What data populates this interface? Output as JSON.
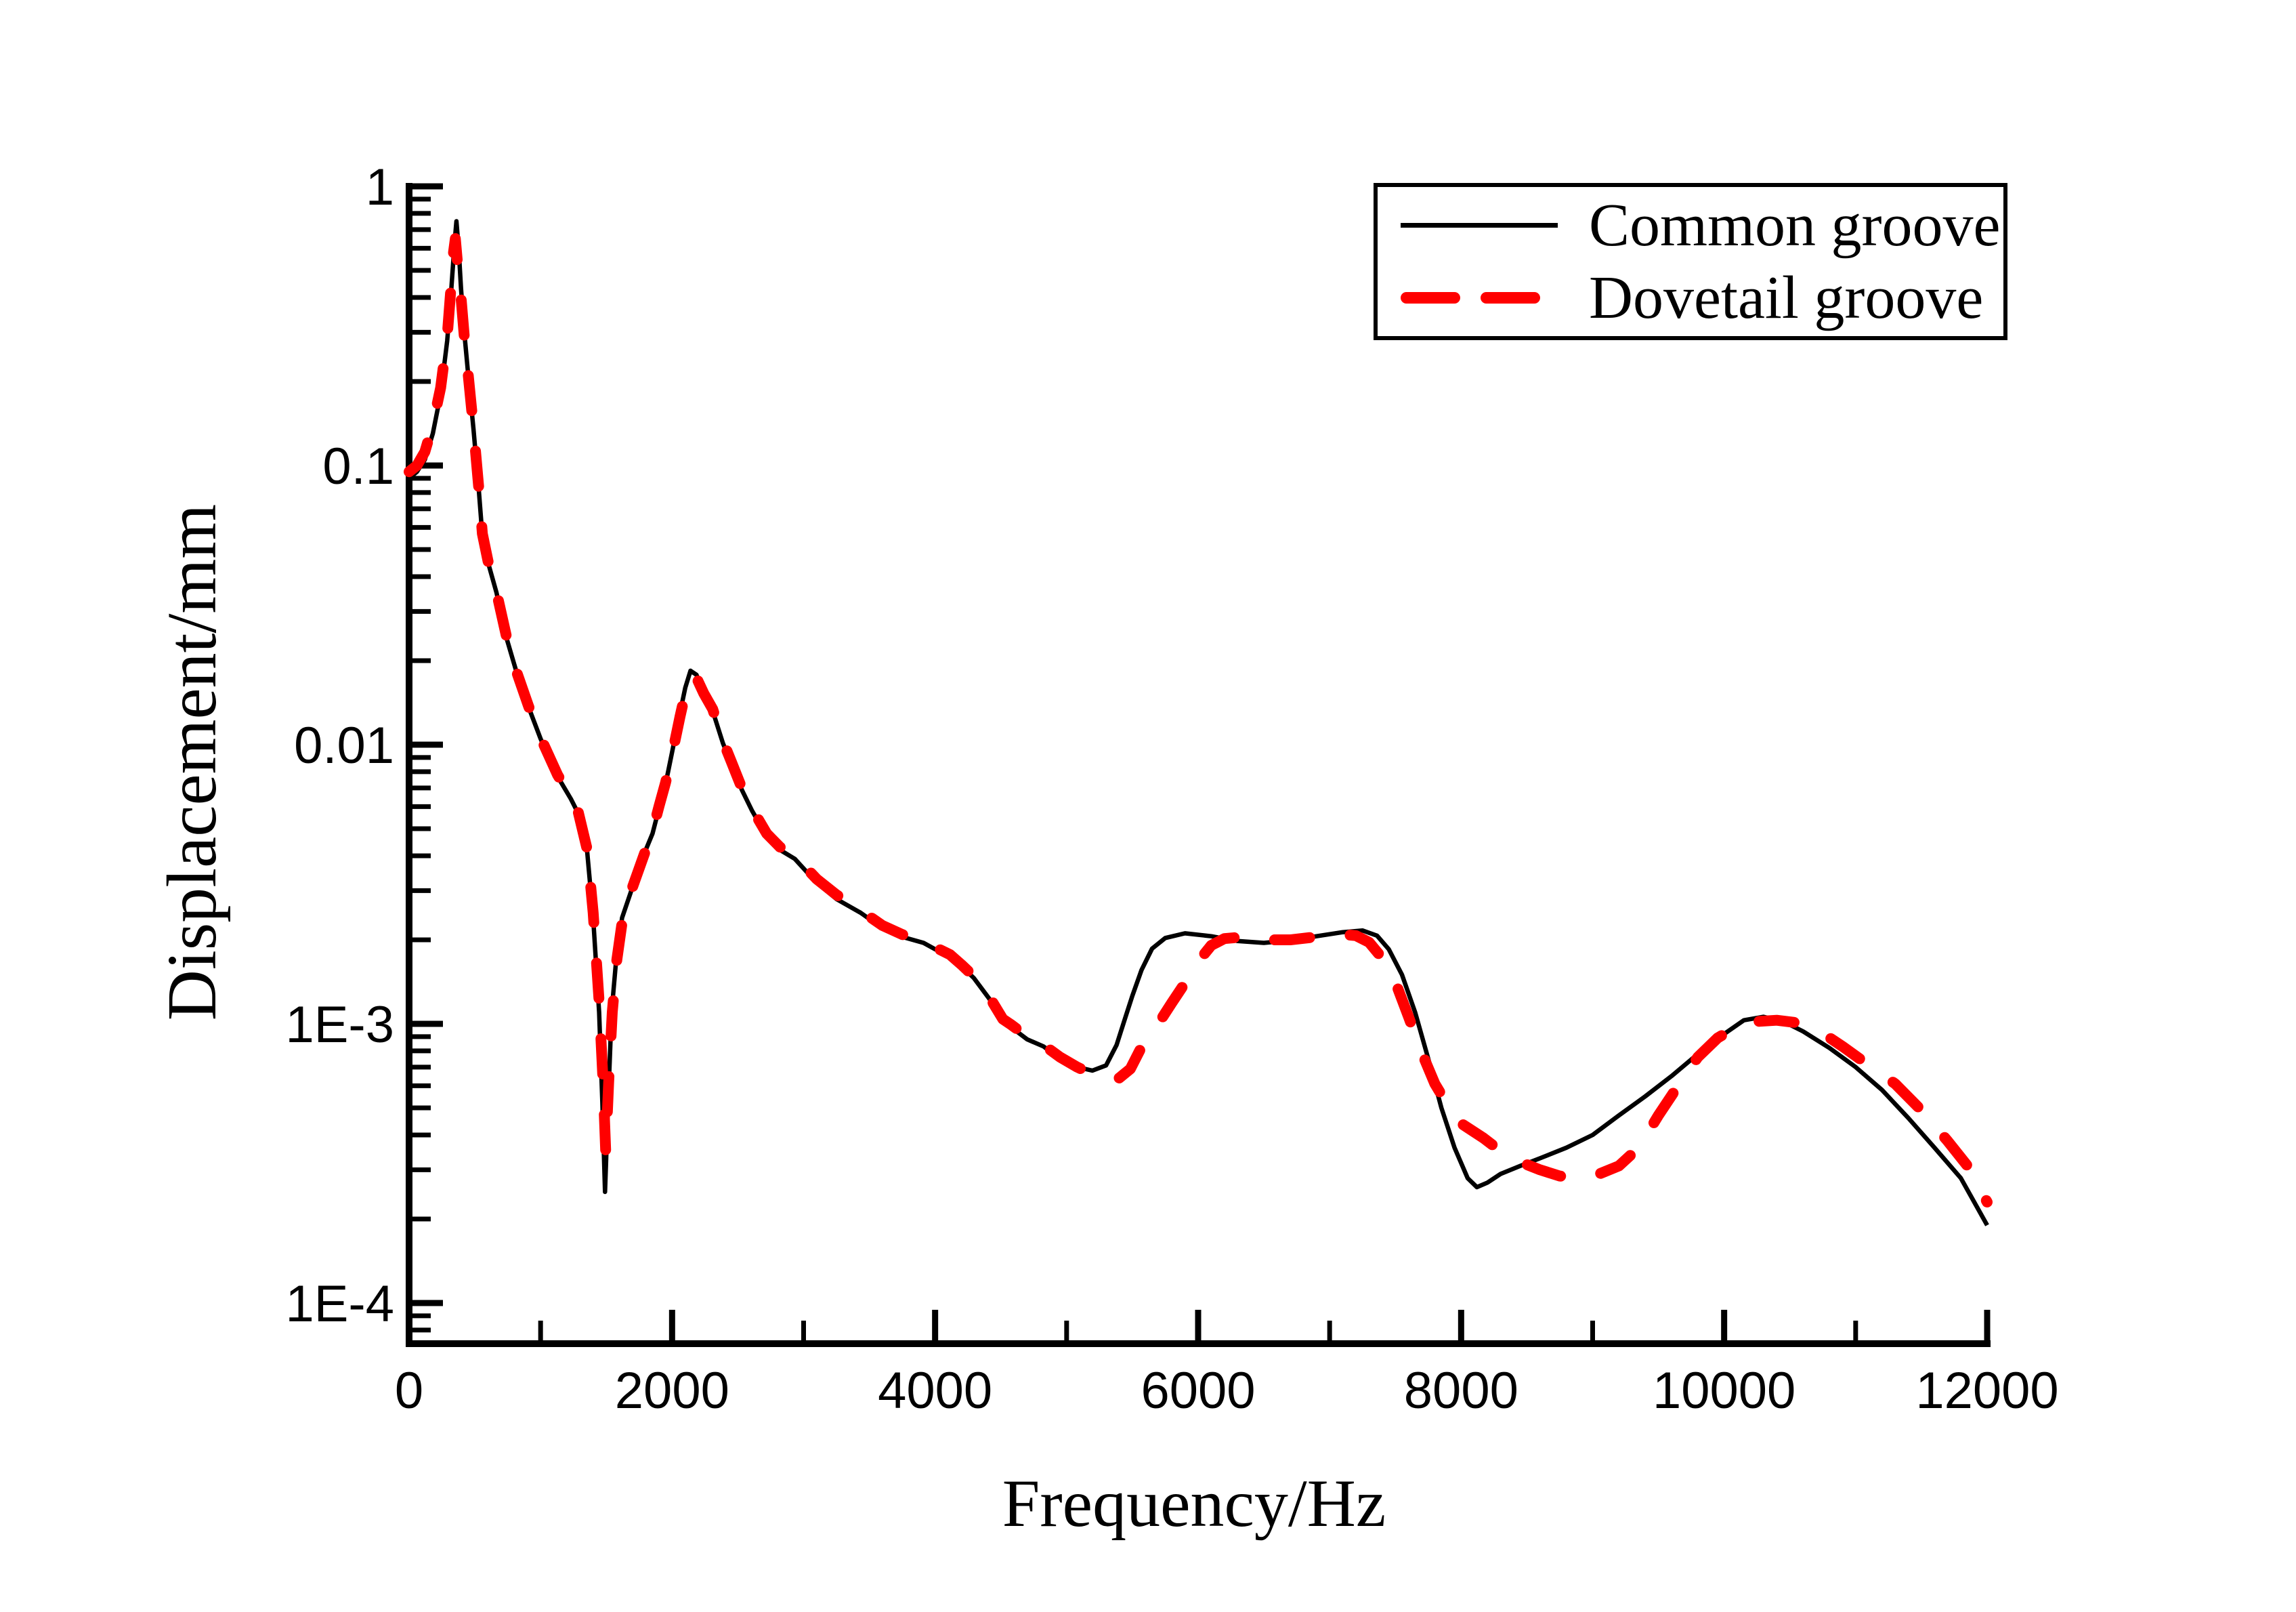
{
  "chart_data": {
    "type": "line",
    "title": "",
    "xlabel": "Frequency/Hz",
    "ylabel": "Displacement/mm",
    "x_range": [
      0,
      12000
    ],
    "y_scale": "log",
    "y_range": [
      0.0001,
      1
    ],
    "grid": false,
    "legend_position": "top-right",
    "background_color": "#FFFFFF",
    "axis_color": "#000000",
    "x_tick_values": [
      0,
      2000,
      4000,
      6000,
      8000,
      10000,
      12000
    ],
    "x_tick_labels": [
      "0",
      "2000",
      "4000",
      "6000",
      "8000",
      "10000",
      "12000"
    ],
    "x_minor_tick_values": [
      1000,
      3000,
      5000,
      7000,
      9000,
      11000
    ],
    "y_tick_values": [
      1,
      0.1,
      0.01,
      0.001,
      0.0001
    ],
    "y_tick_labels": [
      "1",
      "0.1",
      "0.01",
      "1E-3",
      "1E-4"
    ],
    "series": [
      {
        "name": "Common groove",
        "color": "#000000",
        "style": "solid",
        "points": [
          [
            0,
            0.09
          ],
          [
            60,
            0.095
          ],
          [
            120,
            0.105
          ],
          [
            180,
            0.13
          ],
          [
            240,
            0.18
          ],
          [
            290,
            0.28
          ],
          [
            320,
            0.42
          ],
          [
            345,
            0.62
          ],
          [
            360,
            0.75
          ],
          [
            378,
            0.59
          ],
          [
            395,
            0.43
          ],
          [
            420,
            0.3
          ],
          [
            450,
            0.21
          ],
          [
            490,
            0.135
          ],
          [
            530,
            0.082
          ],
          [
            557,
            0.056
          ],
          [
            600,
            0.045
          ],
          [
            665,
            0.035
          ],
          [
            742,
            0.024
          ],
          [
            820,
            0.018
          ],
          [
            907,
            0.0137
          ],
          [
            1000,
            0.0105
          ],
          [
            1129,
            0.0077
          ],
          [
            1230,
            0.0064
          ],
          [
            1284,
            0.0057
          ],
          [
            1355,
            0.0041
          ],
          [
            1400,
            0.0024
          ],
          [
            1445,
            0.0011
          ],
          [
            1470,
            0.00052
          ],
          [
            1490,
            0.00025
          ],
          [
            1512,
            0.0005
          ],
          [
            1540,
            0.0011
          ],
          [
            1575,
            0.0017
          ],
          [
            1620,
            0.0024
          ],
          [
            1700,
            0.0031
          ],
          [
            1800,
            0.0042
          ],
          [
            1851,
            0.0048
          ],
          [
            1900,
            0.0059
          ],
          [
            1950,
            0.0072
          ],
          [
            2000,
            0.0094
          ],
          [
            2060,
            0.013
          ],
          [
            2100,
            0.016
          ],
          [
            2140,
            0.0184
          ],
          [
            2185,
            0.0178
          ],
          [
            2230,
            0.0158
          ],
          [
            2309,
            0.0132
          ],
          [
            2387,
            0.0101
          ],
          [
            2450,
            0.0086
          ],
          [
            2530,
            0.0069
          ],
          [
            2608,
            0.0058
          ],
          [
            2720,
            0.0047
          ],
          [
            2820,
            0.0042
          ],
          [
            2933,
            0.0039
          ],
          [
            3100,
            0.0032
          ],
          [
            3250,
            0.0028
          ],
          [
            3433,
            0.0025
          ],
          [
            3600,
            0.0022
          ],
          [
            3750,
            0.00205
          ],
          [
            3912,
            0.00195
          ],
          [
            4000,
            0.00185
          ],
          [
            4113,
            0.00174
          ],
          [
            4200,
            0.00161
          ],
          [
            4294,
            0.00146
          ],
          [
            4412,
            0.00123
          ],
          [
            4515,
            0.00102
          ],
          [
            4582,
            0.00097
          ],
          [
            4700,
            0.00088
          ],
          [
            4824,
            0.00083
          ],
          [
            4950,
            0.00075
          ],
          [
            5080,
            0.0007
          ],
          [
            5196,
            0.00068
          ],
          [
            5300,
            0.00071
          ],
          [
            5380,
            0.00084
          ],
          [
            5443,
            0.00104
          ],
          [
            5500,
            0.00126
          ],
          [
            5570,
            0.00156
          ],
          [
            5650,
            0.00186
          ],
          [
            5750,
            0.00203
          ],
          [
            5900,
            0.00211
          ],
          [
            6100,
            0.00206
          ],
          [
            6300,
            0.00198
          ],
          [
            6500,
            0.00195
          ],
          [
            6700,
            0.00199
          ],
          [
            6900,
            0.00206
          ],
          [
            7100,
            0.00213
          ],
          [
            7250,
            0.00216
          ],
          [
            7360,
            0.00207
          ],
          [
            7450,
            0.00185
          ],
          [
            7550,
            0.0015
          ],
          [
            7650,
            0.0011
          ],
          [
            7750,
            0.00075
          ],
          [
            7850,
            0.0005
          ],
          [
            7950,
            0.00036
          ],
          [
            8050,
            0.00028
          ],
          [
            8120,
            0.00026
          ],
          [
            8200,
            0.00027
          ],
          [
            8300,
            0.00029
          ],
          [
            8450,
            0.00031
          ],
          [
            8600,
            0.00033
          ],
          [
            8800,
            0.00036
          ],
          [
            9000,
            0.0004
          ],
          [
            9200,
            0.00047
          ],
          [
            9400,
            0.00055
          ],
          [
            9600,
            0.00065
          ],
          [
            9800,
            0.00078
          ],
          [
            10000,
            0.00092
          ],
          [
            10150,
            0.00103
          ],
          [
            10300,
            0.00106
          ],
          [
            10450,
            0.00102
          ],
          [
            10600,
            0.00094
          ],
          [
            10800,
            0.00082
          ],
          [
            11000,
            0.0007
          ],
          [
            11200,
            0.00058
          ],
          [
            11400,
            0.00046
          ],
          [
            11600,
            0.00036
          ],
          [
            11800,
            0.00028
          ],
          [
            12000,
            0.00019
          ]
        ]
      },
      {
        "name": "Dovetail groove",
        "color": "#FF0000",
        "style": "dashed",
        "points": [
          [
            0,
            0.095
          ],
          [
            60,
            0.1
          ],
          [
            120,
            0.112
          ],
          [
            180,
            0.14
          ],
          [
            240,
            0.19
          ],
          [
            290,
            0.29
          ],
          [
            318,
            0.43
          ],
          [
            338,
            0.58
          ],
          [
            352,
            0.65
          ],
          [
            370,
            0.52
          ],
          [
            395,
            0.4
          ],
          [
            420,
            0.29
          ],
          [
            450,
            0.21
          ],
          [
            490,
            0.136
          ],
          [
            530,
            0.083
          ],
          [
            557,
            0.057
          ],
          [
            600,
            0.0455
          ],
          [
            665,
            0.0352
          ],
          [
            742,
            0.0242
          ],
          [
            820,
            0.0181
          ],
          [
            907,
            0.0138
          ],
          [
            1000,
            0.0106
          ],
          [
            1129,
            0.0078
          ],
          [
            1230,
            0.0065
          ],
          [
            1284,
            0.0058
          ],
          [
            1355,
            0.0042
          ],
          [
            1400,
            0.0025
          ],
          [
            1445,
            0.0012
          ],
          [
            1475,
            0.00062
          ],
          [
            1495,
            0.00035
          ],
          [
            1518,
            0.00062
          ],
          [
            1545,
            0.0011
          ],
          [
            1580,
            0.0017
          ],
          [
            1625,
            0.0024
          ],
          [
            1700,
            0.0031
          ],
          [
            1800,
            0.0042
          ],
          [
            1851,
            0.0049
          ],
          [
            1900,
            0.006
          ],
          [
            1950,
            0.0073
          ],
          [
            2000,
            0.0092
          ],
          [
            2060,
            0.0126
          ],
          [
            2100,
            0.0153
          ],
          [
            2142,
            0.0176
          ],
          [
            2190,
            0.0172
          ],
          [
            2240,
            0.0153
          ],
          [
            2309,
            0.0134
          ],
          [
            2387,
            0.0103
          ],
          [
            2450,
            0.0087
          ],
          [
            2530,
            0.007
          ],
          [
            2608,
            0.0059
          ],
          [
            2720,
            0.0048
          ],
          [
            2820,
            0.0043
          ],
          [
            2933,
            0.004
          ],
          [
            3100,
            0.0033
          ],
          [
            3250,
            0.0029
          ],
          [
            3433,
            0.00255
          ],
          [
            3600,
            0.00225
          ],
          [
            3750,
            0.00209
          ],
          [
            3912,
            0.00198
          ],
          [
            4000,
            0.00188
          ],
          [
            4113,
            0.00177
          ],
          [
            4200,
            0.00163
          ],
          [
            4294,
            0.00148
          ],
          [
            4412,
            0.00125
          ],
          [
            4515,
            0.00104
          ],
          [
            4582,
            0.00099
          ],
          [
            4700,
            0.0009
          ],
          [
            4824,
            0.00084
          ],
          [
            4950,
            0.00076
          ],
          [
            5080,
            0.0007
          ],
          [
            5196,
            0.00066
          ],
          [
            5300,
            0.00064
          ],
          [
            5400,
            0.00064
          ],
          [
            5485,
            0.00069
          ],
          [
            5560,
            0.00081
          ],
          [
            5640,
            0.00093
          ],
          [
            5720,
            0.00104
          ],
          [
            5800,
            0.00119
          ],
          [
            5900,
            0.0014
          ],
          [
            6000,
            0.00167
          ],
          [
            6100,
            0.00191
          ],
          [
            6200,
            0.00202
          ],
          [
            6350,
            0.00205
          ],
          [
            6500,
            0.002
          ],
          [
            6700,
            0.002
          ],
          [
            6900,
            0.00205
          ],
          [
            7100,
            0.00209
          ],
          [
            7200,
            0.00207
          ],
          [
            7300,
            0.00196
          ],
          [
            7400,
            0.00172
          ],
          [
            7500,
            0.00141
          ],
          [
            7600,
            0.00106
          ],
          [
            7700,
            0.00079
          ],
          [
            7800,
            0.00061
          ],
          [
            7900,
            0.00051
          ],
          [
            8000,
            0.00044
          ],
          [
            8170,
            0.00039
          ],
          [
            8300,
            0.00035
          ],
          [
            8450,
            0.00032
          ],
          [
            8600,
            0.0003
          ],
          [
            8750,
            0.000285
          ],
          [
            8900,
            0.00028
          ],
          [
            9050,
            0.00029
          ],
          [
            9200,
            0.00031
          ],
          [
            9350,
            0.00036
          ],
          [
            9500,
            0.00047
          ],
          [
            9650,
            0.0006
          ],
          [
            9800,
            0.00076
          ],
          [
            9950,
            0.00089
          ],
          [
            10100,
            0.00098
          ],
          [
            10250,
            0.00102
          ],
          [
            10400,
            0.00103
          ],
          [
            10550,
            0.00101
          ],
          [
            10700,
            0.00096
          ],
          [
            10900,
            0.00083
          ],
          [
            11100,
            0.00071
          ],
          [
            11300,
            0.00061
          ],
          [
            11500,
            0.00049
          ],
          [
            11700,
            0.00038
          ],
          [
            11850,
            0.00031
          ],
          [
            12000,
            0.00023
          ]
        ]
      }
    ]
  },
  "legend": {
    "entries": [
      "Common groove",
      "Dovetail groove"
    ]
  }
}
